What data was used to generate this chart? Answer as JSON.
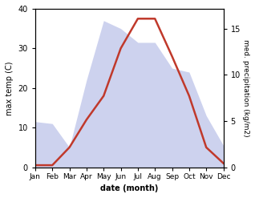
{
  "months": [
    "Jan",
    "Feb",
    "Mar",
    "Apr",
    "May",
    "Jun",
    "Jul",
    "Aug",
    "Sep",
    "Oct",
    "Nov",
    "Dec"
  ],
  "temp": [
    0.5,
    0.5,
    5.0,
    12.0,
    18.0,
    30.0,
    37.5,
    37.5,
    28.0,
    18.0,
    5.0,
    1.0
  ],
  "precip_ax1_scale": [
    11.5,
    11.0,
    5.0,
    22.0,
    37.0,
    35.0,
    31.5,
    31.5,
    25.0,
    24.0,
    13.0,
    5.5
  ],
  "temp_color": "#c0392b",
  "precip_fill_color": "#b8bfe8",
  "temp_ylim": [
    0,
    40
  ],
  "precip_ylim": [
    0,
    17.14
  ],
  "precip_yticks": [
    0,
    5,
    10,
    15
  ],
  "temp_yticks": [
    0,
    10,
    20,
    30,
    40
  ],
  "xlabel": "date (month)",
  "ylabel_left": "max temp (C)",
  "ylabel_right": "med. precipitation (kg/m2)",
  "line_width": 1.8,
  "scale_factor": 2.333
}
